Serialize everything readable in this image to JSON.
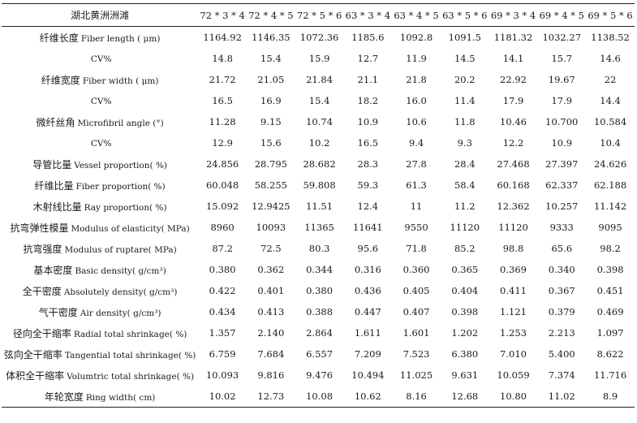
{
  "table": {
    "corner": "湖北黄洲洲滩",
    "columns": [
      "72 * 3 * 4",
      "72 * 4 * 5",
      "72 * 5 * 6",
      "63 * 3 * 4",
      "63 * 4 * 5",
      "63 * 5 * 6",
      "69 * 3 * 4",
      "69 * 4 * 5",
      "69 * 5 * 6"
    ],
    "rows": [
      {
        "zh": "纤维长度",
        "en": "Fiber length ( μm)",
        "values": [
          "1164.92",
          "1146.35",
          "1072.36",
          "1185.6",
          "1092.8",
          "1091.5",
          "1181.32",
          "1032.27",
          "1138.52"
        ]
      },
      {
        "zh": "",
        "en": "CV%",
        "values": [
          "14.8",
          "15.4",
          "15.9",
          "12.7",
          "11.9",
          "14.5",
          "14.1",
          "15.7",
          "14.6"
        ]
      },
      {
        "zh": "纤维宽度",
        "en": "Fiber width ( μm)",
        "values": [
          "21.72",
          "21.05",
          "21.84",
          "21.1",
          "21.8",
          "20.2",
          "22.92",
          "19.67",
          "22"
        ]
      },
      {
        "zh": "",
        "en": "CV%",
        "values": [
          "16.5",
          "16.9",
          "15.4",
          "18.2",
          "16.0",
          "11.4",
          "17.9",
          "17.9",
          "14.4"
        ]
      },
      {
        "zh": "微纤丝角",
        "en": "Microfibril angle (°)",
        "values": [
          "11.28",
          "9.15",
          "10.74",
          "10.9",
          "10.6",
          "11.8",
          "10.46",
          "10.700",
          "10.584"
        ]
      },
      {
        "zh": "",
        "en": "CV%",
        "values": [
          "12.9",
          "15.6",
          "10.2",
          "16.5",
          "9.4",
          "9.3",
          "12.2",
          "10.9",
          "10.4"
        ]
      },
      {
        "zh": "导管比量",
        "en": "Vessel proportion( %)",
        "values": [
          "24.856",
          "28.795",
          "28.682",
          "28.3",
          "27.8",
          "28.4",
          "27.468",
          "27.397",
          "24.626"
        ]
      },
      {
        "zh": "纤维比量",
        "en": "Fiber proportion( %)",
        "values": [
          "60.048",
          "58.255",
          "59.808",
          "59.3",
          "61.3",
          "58.4",
          "60.168",
          "62.337",
          "62.188"
        ]
      },
      {
        "zh": "木射线比量",
        "en": "Ray proportion( %)",
        "values": [
          "15.092",
          "12.9425",
          "11.51",
          "12.4",
          "11",
          "11.2",
          "12.362",
          "10.257",
          "11.142"
        ]
      },
      {
        "zh": "抗弯弹性模量",
        "en": "Modulus of elasticity( MPa)",
        "values": [
          "8960",
          "10093",
          "11365",
          "11641",
          "9550",
          "11120",
          "11120",
          "9333",
          "9095"
        ]
      },
      {
        "zh": "抗弯强度",
        "en": "Modulus of ruptare( MPa)",
        "values": [
          "87.2",
          "72.5",
          "80.3",
          "95.6",
          "71.8",
          "85.2",
          "98.8",
          "65.6",
          "98.2"
        ]
      },
      {
        "zh": "基本密度",
        "en": "Basic density( g/cm³)",
        "values": [
          "0.380",
          "0.362",
          "0.344",
          "0.316",
          "0.360",
          "0.365",
          "0.369",
          "0.340",
          "0.398"
        ]
      },
      {
        "zh": "全干密度",
        "en": "Absolutely density( g/cm³)",
        "values": [
          "0.422",
          "0.401",
          "0.380",
          "0.436",
          "0.405",
          "0.404",
          "0.411",
          "0.367",
          "0.451"
        ]
      },
      {
        "zh": "气干密度",
        "en": "Air density( g/cm³)",
        "values": [
          "0.434",
          "0.413",
          "0.388",
          "0.447",
          "0.407",
          "0.398",
          "1.121",
          "0.379",
          "0.469"
        ]
      },
      {
        "zh": "径向全干缩率",
        "en": "Radial total shrinkage( %)",
        "values": [
          "1.357",
          "2.140",
          "2.864",
          "1.611",
          "1.601",
          "1.202",
          "1.253",
          "2.213",
          "1.097"
        ]
      },
      {
        "zh": "弦向全干缩率",
        "en": "Tangential total shrinkage( %)",
        "values": [
          "6.759",
          "7.684",
          "6.557",
          "7.209",
          "7.523",
          "6.380",
          "7.010",
          "5.400",
          "8.622"
        ]
      },
      {
        "zh": "体积全干缩率",
        "en": "Volumtric total shrinkage( %)",
        "values": [
          "10.093",
          "9.816",
          "9.476",
          "10.494",
          "11.025",
          "9.631",
          "10.059",
          "7.374",
          "11.716"
        ]
      },
      {
        "zh": "年轮宽度",
        "en": "Ring width( cm)",
        "values": [
          "10.02",
          "12.73",
          "10.08",
          "10.62",
          "8.16",
          "12.68",
          "10.80",
          "11.02",
          "8.9"
        ]
      }
    ]
  }
}
